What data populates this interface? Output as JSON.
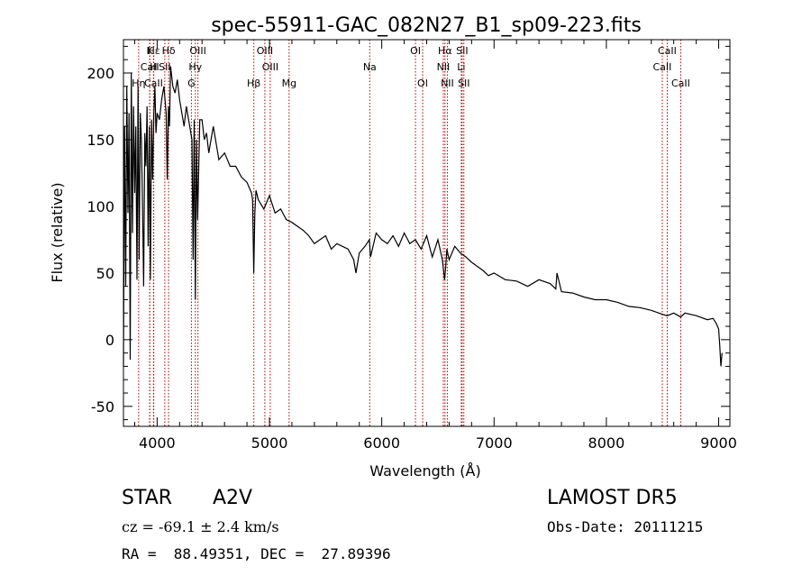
{
  "chart_data": {
    "type": "line",
    "title": "spec-55911-GAC_082N27_B1_sp09-223.fits",
    "xlabel": "Wavelength (Å)",
    "ylabel": "Flux (relative)",
    "xlim": [
      3700,
      9100
    ],
    "ylim": [
      -65,
      225
    ],
    "xticks": [
      4000,
      5000,
      6000,
      7000,
      8000,
      9000
    ],
    "yticks": [
      -50,
      0,
      50,
      100,
      150,
      200
    ],
    "grid": false,
    "line_color": "#000000",
    "marker_color": "#aa0000",
    "spectrum": {
      "x": [
        3700,
        3710,
        3720,
        3730,
        3740,
        3750,
        3760,
        3770,
        3780,
        3790,
        3800,
        3810,
        3820,
        3830,
        3840,
        3850,
        3860,
        3870,
        3880,
        3890,
        3900,
        3910,
        3920,
        3930,
        3940,
        3950,
        3960,
        3970,
        3980,
        3990,
        4000,
        4020,
        4040,
        4060,
        4080,
        4090,
        4100,
        4110,
        4120,
        4140,
        4160,
        4180,
        4200,
        4220,
        4240,
        4260,
        4280,
        4300,
        4310,
        4320,
        4330,
        4340,
        4350,
        4360,
        4380,
        4400,
        4420,
        4440,
        4460,
        4480,
        4500,
        4550,
        4600,
        4650,
        4700,
        4750,
        4800,
        4840,
        4850,
        4860,
        4870,
        4880,
        4900,
        4950,
        5000,
        5050,
        5100,
        5150,
        5200,
        5250,
        5300,
        5350,
        5400,
        5450,
        5500,
        5550,
        5600,
        5650,
        5700,
        5750,
        5770,
        5800,
        5850,
        5890,
        5900,
        5950,
        6000,
        6050,
        6100,
        6150,
        6200,
        6250,
        6300,
        6350,
        6400,
        6450,
        6500,
        6540,
        6560,
        6570,
        6580,
        6600,
        6650,
        6700,
        6750,
        6800,
        6850,
        6900,
        6950,
        7000,
        7100,
        7200,
        7300,
        7400,
        7500,
        7550,
        7560,
        7600,
        7700,
        7800,
        7900,
        8000,
        8100,
        8200,
        8300,
        8400,
        8498,
        8542,
        8600,
        8662,
        8700,
        8800,
        8900,
        8950,
        8980,
        9000,
        9010,
        9020,
        9030
      ],
      "y": [
        -20,
        160,
        40,
        190,
        95,
        170,
        -15,
        200,
        80,
        175,
        110,
        160,
        45,
        190,
        60,
        170,
        150,
        100,
        40,
        155,
        130,
        175,
        70,
        160,
        45,
        165,
        120,
        170,
        190,
        155,
        170,
        165,
        180,
        190,
        170,
        120,
        175,
        160,
        205,
        190,
        185,
        195,
        180,
        170,
        160,
        175,
        165,
        155,
        150,
        60,
        165,
        30,
        150,
        90,
        165,
        165,
        150,
        155,
        140,
        150,
        160,
        135,
        140,
        130,
        130,
        122,
        118,
        110,
        105,
        50,
        95,
        112,
        105,
        98,
        108,
        95,
        98,
        90,
        88,
        85,
        82,
        78,
        72,
        75,
        78,
        68,
        72,
        70,
        68,
        60,
        50,
        65,
        70,
        75,
        62,
        80,
        75,
        72,
        78,
        70,
        80,
        72,
        75,
        68,
        78,
        62,
        75,
        60,
        45,
        55,
        68,
        60,
        70,
        65,
        62,
        58,
        55,
        52,
        48,
        50,
        45,
        44,
        40,
        45,
        42,
        38,
        50,
        36,
        35,
        32,
        30,
        30,
        28,
        25,
        24,
        22,
        19,
        18,
        20,
        17,
        20,
        18,
        15,
        16,
        12,
        8,
        -5,
        -20,
        -10
      ]
    },
    "lines": [
      {
        "label": "Hε",
        "x": 3970,
        "row": 0
      },
      {
        "label": "K",
        "x": 3934,
        "row": 0
      },
      {
        "label": "Hδ",
        "x": 4102,
        "row": 0
      },
      {
        "label": "OIII",
        "x": 4363,
        "row": 0
      },
      {
        "label": "OIII",
        "x": 4959,
        "row": 0
      },
      {
        "label": "OI",
        "x": 6300,
        "row": 0
      },
      {
        "label": "Hα",
        "x": 6563,
        "row": 0
      },
      {
        "label": "SII",
        "x": 6716,
        "row": 0
      },
      {
        "label": "CaII",
        "x": 8542,
        "row": 0
      },
      {
        "label": "CaII",
        "x": 3934,
        "row": 1
      },
      {
        "label": "H",
        "x": 3968,
        "row": 1
      },
      {
        "label": "SII",
        "x": 4068,
        "row": 1
      },
      {
        "label": "Hγ",
        "x": 4340,
        "row": 1
      },
      {
        "label": "OIII",
        "x": 5007,
        "row": 1
      },
      {
        "label": "Na",
        "x": 5893,
        "row": 1
      },
      {
        "label": "NII",
        "x": 6548,
        "row": 1
      },
      {
        "label": "Li",
        "x": 6708,
        "row": 1
      },
      {
        "label": "CaII",
        "x": 8498,
        "row": 1
      },
      {
        "label": "CaII",
        "x": 3968,
        "row": 2
      },
      {
        "label": "Hη",
        "x": 3835,
        "row": 2
      },
      {
        "label": "G",
        "x": 4305,
        "row": 2
      },
      {
        "label": "Hβ",
        "x": 4861,
        "row": 2
      },
      {
        "label": "Mg",
        "x": 5175,
        "row": 2
      },
      {
        "label": "OI",
        "x": 6364,
        "row": 2
      },
      {
        "label": "NII",
        "x": 6584,
        "row": 2
      },
      {
        "label": "SII",
        "x": 6731,
        "row": 2
      },
      {
        "label": "CaII",
        "x": 8662,
        "row": 2
      }
    ]
  },
  "info": {
    "object_class": "STAR",
    "subclass": "A2V",
    "survey": "LAMOST DR5",
    "redshift": "cz = -69.1 ± 2.4 km/s",
    "obs_date": "Obs-Date: 20111215",
    "coords": "RA =  88.49351, DEC =  27.89396"
  }
}
